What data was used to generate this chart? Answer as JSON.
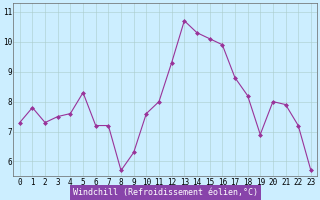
{
  "x": [
    0,
    1,
    2,
    3,
    4,
    5,
    6,
    7,
    8,
    9,
    10,
    11,
    12,
    13,
    14,
    15,
    16,
    17,
    18,
    19,
    20,
    21,
    22,
    23
  ],
  "y": [
    7.3,
    7.8,
    7.3,
    7.5,
    7.6,
    8.3,
    7.2,
    7.2,
    5.7,
    6.3,
    7.6,
    8.0,
    9.3,
    10.7,
    10.3,
    10.1,
    9.9,
    8.8,
    8.2,
    6.9,
    8.0,
    7.9,
    7.2,
    5.7
  ],
  "line_color": "#993399",
  "marker": "D",
  "marker_size": 2.0,
  "bg_color": "#cceeff",
  "grid_color": "#aacccc",
  "xlabel": "Windchill (Refroidissement éolien,°C)",
  "xlim": [
    -0.5,
    23.5
  ],
  "ylim": [
    5.5,
    11.3
  ],
  "yticks": [
    6,
    7,
    8,
    9,
    10,
    11
  ],
  "xticks": [
    0,
    1,
    2,
    3,
    4,
    5,
    6,
    7,
    8,
    9,
    10,
    11,
    12,
    13,
    14,
    15,
    16,
    17,
    18,
    19,
    20,
    21,
    22,
    23
  ],
  "tick_fontsize": 5.5,
  "xlabel_fontsize": 6.0,
  "xlabel_color": "#330033",
  "xlabel_bg": "#9966aa",
  "line_width": 0.8
}
